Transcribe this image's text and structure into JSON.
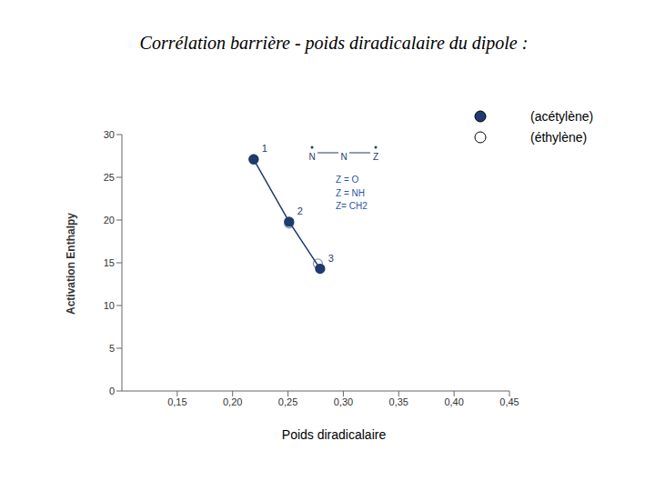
{
  "chart_data": {
    "type": "scatter",
    "title": "Corrélation barrière - poids diradicalaire du dipole :",
    "x_label": "Poids diradicalaire",
    "y_label": "Activation Enthalpy",
    "xlim": [
      0.1,
      0.45
    ],
    "xticks": [
      {
        "value": 0.15,
        "label": "0,15"
      },
      {
        "value": 0.2,
        "label": "0,20"
      },
      {
        "value": 0.25,
        "label": "0,25"
      },
      {
        "value": 0.3,
        "label": "0,30"
      },
      {
        "value": 0.35,
        "label": "0,35"
      },
      {
        "value": 0.4,
        "label": "0,40"
      },
      {
        "value": 0.45,
        "label": "0,45"
      }
    ],
    "ylim": [
      0,
      30
    ],
    "yticks": [
      0,
      5,
      10,
      15,
      20,
      25,
      30
    ],
    "grid": false,
    "legend": "upper right",
    "series": [
      {
        "name": "(acétylène)",
        "color": "#1f3a6e",
        "marker": "filled circle",
        "line_style": "solid",
        "x": [
          0.219,
          0.251,
          0.279
        ],
        "values": [
          27.1,
          19.8,
          14.3
        ],
        "point_labels": [
          "1",
          "2",
          "3"
        ]
      },
      {
        "name": "(éthylène)",
        "color": "#8a9bb5",
        "marker": "open circle",
        "line_style": "none",
        "x": [
          0.219,
          0.251,
          0.277
        ],
        "values": [
          27.1,
          19.6,
          14.9
        ]
      }
    ],
    "annotations": {
      "structure": [
        "N",
        "N",
        "Z"
      ],
      "lines": [
        "Z = O",
        "Z = NH",
        "Z= CH2"
      ]
    }
  }
}
